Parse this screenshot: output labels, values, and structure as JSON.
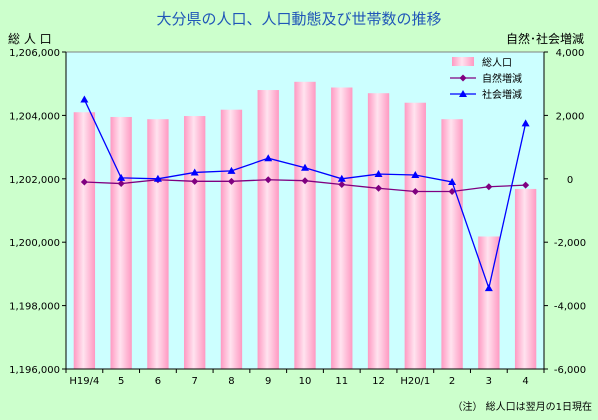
{
  "chart_data": {
    "type": "bar+line",
    "title": "大分県の人口、人口動態及び世帯数の推移",
    "left_axis_label": "総 人 口",
    "right_axis_label": "自然･社会増減",
    "note": "（注） 総人口は翌月の1日現在",
    "categories": [
      "H19/4",
      "5",
      "6",
      "7",
      "8",
      "9",
      "10",
      "11",
      "12",
      "H20/1",
      "2",
      "3",
      "4"
    ],
    "left_ylim": [
      1196000,
      1206000
    ],
    "left_ticks": [
      "1,196,000",
      "1,198,000",
      "1,200,000",
      "1,202,000",
      "1,204,000",
      "1,206,000"
    ],
    "right_ylim": [
      -6000,
      4000
    ],
    "right_ticks": [
      "-6,000",
      "-4,000",
      "-2,000",
      "0",
      "2,000",
      "4,000"
    ],
    "legend_position": "top-right",
    "grid": false,
    "series": [
      {
        "name": "総人口",
        "kind": "bar",
        "axis": "left",
        "color": "#ffb3d1",
        "values": [
          1204100,
          1203950,
          1203880,
          1203980,
          1204180,
          1204800,
          1205060,
          1204880,
          1204700,
          1204400,
          1203880,
          1200180,
          1201680
        ]
      },
      {
        "name": "自然増減",
        "kind": "line",
        "axis": "right",
        "color": "#800080",
        "marker": "diamond",
        "values": [
          -100,
          -150,
          -30,
          -80,
          -80,
          -30,
          -60,
          -180,
          -300,
          -400,
          -400,
          -250,
          -200
        ]
      },
      {
        "name": "社会増減",
        "kind": "line",
        "axis": "right",
        "color": "#0000ff",
        "marker": "triangle",
        "values": [
          2500,
          30,
          0,
          200,
          250,
          650,
          350,
          0,
          150,
          120,
          -100,
          -3450,
          1750
        ]
      }
    ]
  }
}
